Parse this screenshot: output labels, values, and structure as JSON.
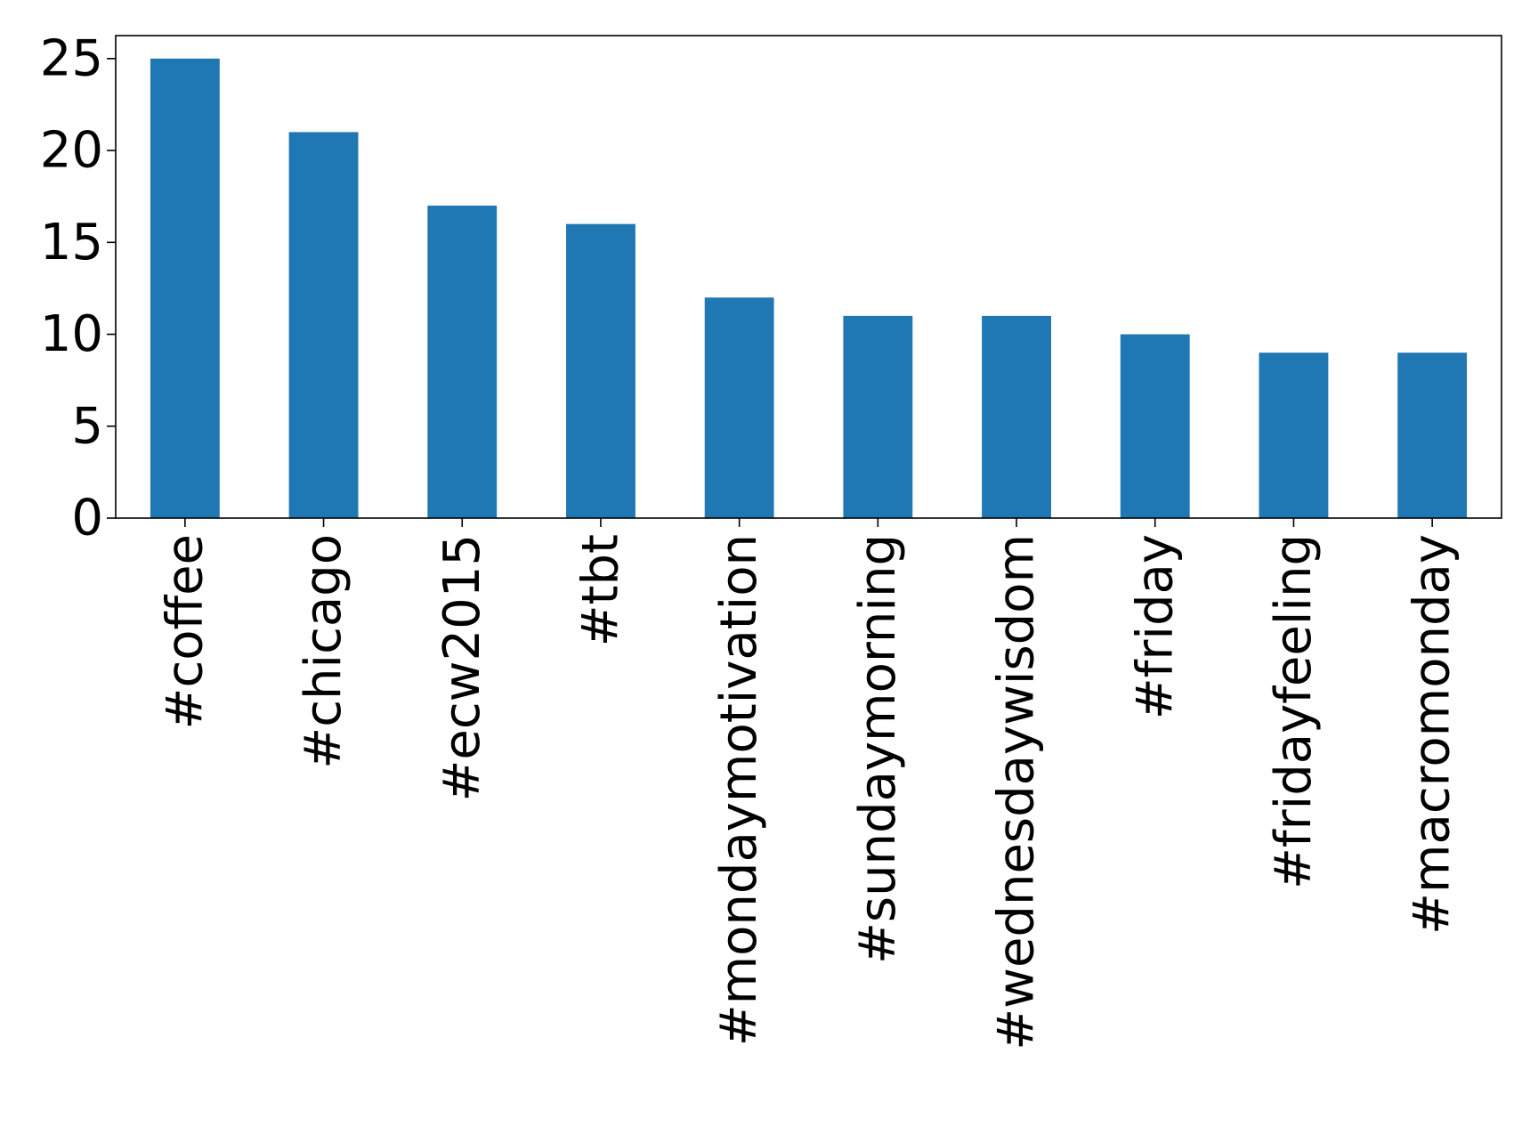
{
  "chart_data": {
    "type": "bar",
    "title": "",
    "xlabel": "",
    "ylabel": "",
    "categories": [
      "#coffee",
      "#chicago",
      "#ecw2015",
      "#tbt",
      "#mondaymotivation",
      "#sundaymorning",
      "#wednesdaywisdom",
      "#friday",
      "#fridayfeeling",
      "#macromonday"
    ],
    "values": [
      25,
      21,
      17,
      16,
      12,
      11,
      11,
      10,
      9,
      9
    ],
    "ylim": [
      0,
      26.25
    ],
    "yticks": [
      0,
      5,
      10,
      15,
      20,
      25
    ],
    "bar_color": "#1f77b4",
    "grid": false,
    "legend": "none"
  }
}
